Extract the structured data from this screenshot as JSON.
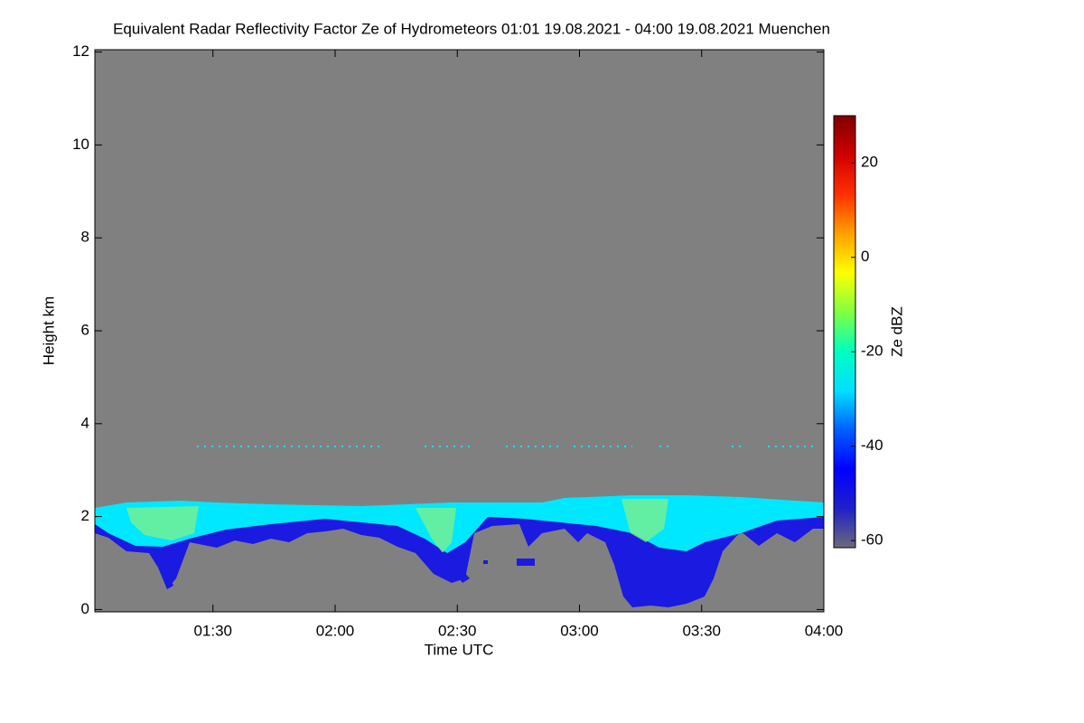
{
  "chart_data": {
    "type": "heatmap",
    "title": "Equivalent Radar Reflectivity Factor Ze of Hydrometeors   01:01 19.08.2021 - 04:00 19.08.2021 Muenchen",
    "x_label": "Time UTC",
    "y_label": "Height km",
    "xlim": [
      61,
      240
    ],
    "xticks": [
      {
        "value": 90,
        "label": "01:30"
      },
      {
        "value": 120,
        "label": "02:00"
      },
      {
        "value": 150,
        "label": "02:30"
      },
      {
        "value": 180,
        "label": "03:00"
      },
      {
        "value": 210,
        "label": "03:30"
      },
      {
        "value": 240,
        "label": "04:00"
      }
    ],
    "ylim": [
      -0.05,
      12.05
    ],
    "yticks": [
      0,
      2,
      4,
      6,
      8,
      10,
      12
    ],
    "background_color": "#808080",
    "colorbar": {
      "label": "Ze dBZ",
      "lim": [
        -61.5,
        30
      ],
      "ticks": [
        -60,
        -40,
        -20,
        0,
        20
      ],
      "colors": [
        "#6a6a7a",
        "#2020c8",
        "#0000ff",
        "#0060ff",
        "#00e0ff",
        "#00ffc0",
        "#80ff40",
        "#ffff00",
        "#ffa000",
        "#ff3000",
        "#d00000",
        "#800000"
      ]
    }
  }
}
